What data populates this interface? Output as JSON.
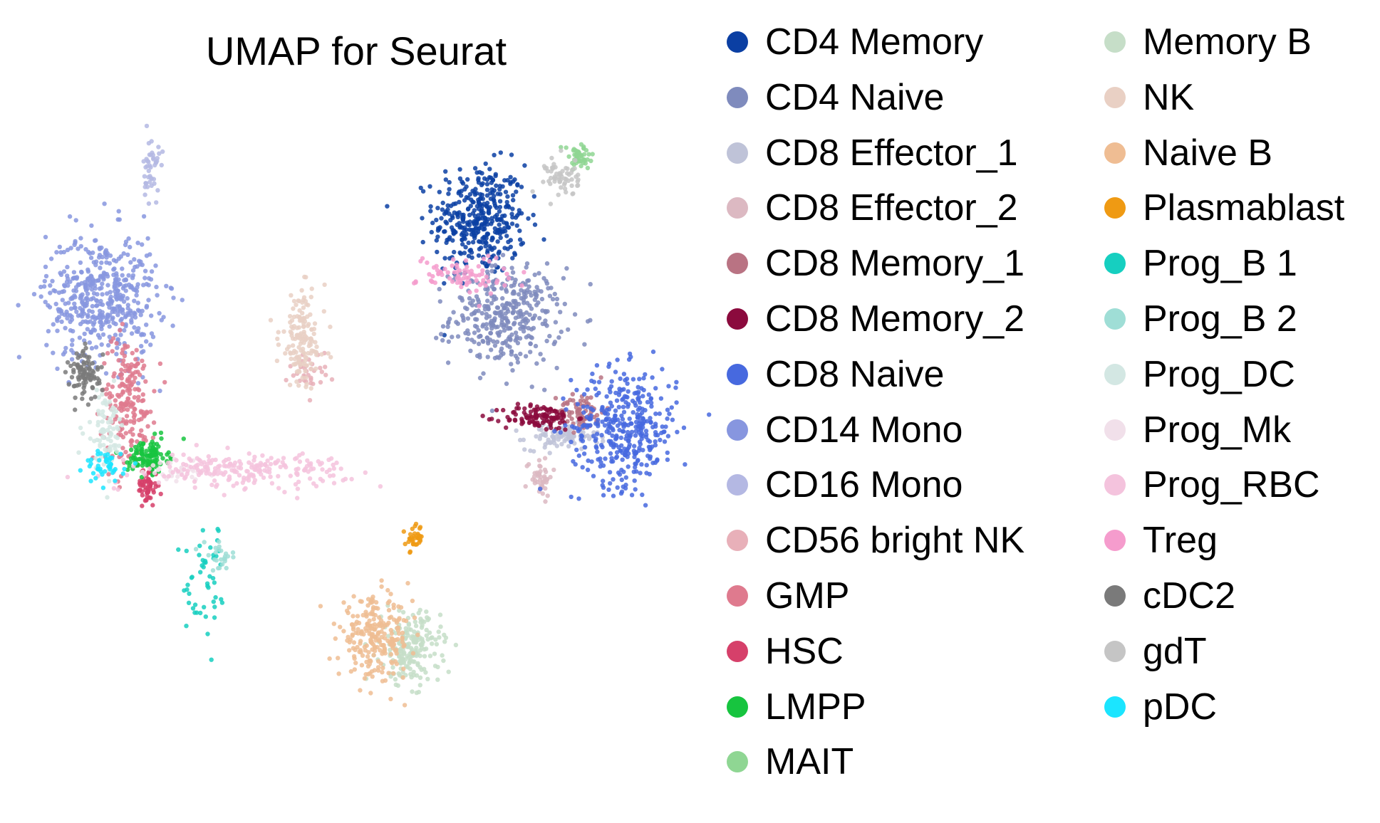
{
  "chart_data": {
    "type": "scatter",
    "title": "UMAP for Seurat",
    "xlabel": "",
    "ylabel": "",
    "axes_visible": false,
    "grid": false,
    "legend_placement": "right, two columns",
    "series": [
      {
        "name": "CD4 Memory",
        "color": "#0b3fa3",
        "clusters": [
          {
            "cx": 5.8,
            "cy": 8.6,
            "sx": 0.7,
            "sy": 0.85,
            "n": 380
          }
        ]
      },
      {
        "name": "CD4 Naive",
        "color": "#7f8bbd",
        "clusters": [
          {
            "cx": 6.6,
            "cy": 5.6,
            "sx": 0.85,
            "sy": 0.75,
            "n": 360
          }
        ]
      },
      {
        "name": "CD8 Effector_1",
        "color": "#bfc3d8",
        "clusters": [
          {
            "cx": 8.3,
            "cy": 1.9,
            "sx": 0.55,
            "sy": 0.2,
            "n": 90
          }
        ]
      },
      {
        "name": "CD8 Effector_2",
        "color": "#dcb9c2",
        "clusters": [
          {
            "cx": 7.6,
            "cy": 0.7,
            "sx": 0.2,
            "sy": 0.3,
            "n": 45
          }
        ]
      },
      {
        "name": "CD8 Memory_1",
        "color": "#b97383",
        "clusters": [
          {
            "cx": 8.9,
            "cy": 2.7,
            "sx": 0.35,
            "sy": 0.3,
            "n": 70
          }
        ]
      },
      {
        "name": "CD8 Memory_2",
        "color": "#8b0a3d",
        "clusters": [
          {
            "cx": 7.6,
            "cy": 2.5,
            "sx": 0.55,
            "sy": 0.2,
            "n": 110
          }
        ]
      },
      {
        "name": "CD8 Naive",
        "color": "#4769df",
        "clusters": [
          {
            "cx": 10.2,
            "cy": 2.2,
            "sx": 0.8,
            "sy": 0.9,
            "n": 380
          }
        ]
      },
      {
        "name": "CD14 Mono",
        "color": "#8796df",
        "clusters": [
          {
            "cx": -5.7,
            "cy": 6.2,
            "sx": 0.85,
            "sy": 1.0,
            "n": 480
          }
        ]
      },
      {
        "name": "CD16 Mono",
        "color": "#b4b8e3",
        "clusters": [
          {
            "cx": -4.2,
            "cy": 10.1,
            "sx": 0.12,
            "sy": 0.5,
            "n": 45
          }
        ]
      },
      {
        "name": "CD56 bright NK",
        "color": "#e8b0b9",
        "clusters": [
          {
            "cx": 0.6,
            "cy": 3.9,
            "sx": 0.3,
            "sy": 0.3,
            "n": 35
          }
        ]
      },
      {
        "name": "GMP",
        "color": "#df7a8e",
        "clusters": [
          {
            "cx": -4.9,
            "cy": 3.0,
            "sx": 0.4,
            "sy": 1.0,
            "n": 200
          }
        ]
      },
      {
        "name": "HSC",
        "color": "#d6406a",
        "clusters": [
          {
            "cx": -4.3,
            "cy": 0.4,
            "sx": 0.15,
            "sy": 0.3,
            "n": 55
          }
        ]
      },
      {
        "name": "LMPP",
        "color": "#17c43f",
        "clusters": [
          {
            "cx": -4.3,
            "cy": 1.3,
            "sx": 0.3,
            "sy": 0.25,
            "n": 110
          }
        ]
      },
      {
        "name": "MAIT",
        "color": "#8fd693",
        "clusters": [
          {
            "cx": 8.8,
            "cy": 10.5,
            "sx": 0.25,
            "sy": 0.2,
            "n": 50
          }
        ]
      },
      {
        "name": "Memory B",
        "color": "#c6dec8",
        "clusters": [
          {
            "cx": 3.7,
            "cy": -4.6,
            "sx": 0.45,
            "sy": 0.55,
            "n": 200
          }
        ]
      },
      {
        "name": "NK",
        "color": "#e9d0c4",
        "clusters": [
          {
            "cx": 0.4,
            "cy": 4.9,
            "sx": 0.35,
            "sy": 0.75,
            "n": 150
          }
        ]
      },
      {
        "name": "Naive B",
        "color": "#efbd93",
        "clusters": [
          {
            "cx": 2.6,
            "cy": -4.3,
            "sx": 0.55,
            "sy": 0.6,
            "n": 240
          }
        ]
      },
      {
        "name": "Plasmablast",
        "color": "#ef9a13",
        "clusters": [
          {
            "cx": 3.8,
            "cy": -1.2,
            "sx": 0.12,
            "sy": 0.2,
            "n": 35
          }
        ]
      },
      {
        "name": "Prog_B 1",
        "color": "#16cfc0",
        "clusters": [
          {
            "cx": -2.5,
            "cy": -2.6,
            "sx": 0.35,
            "sy": 0.9,
            "n": 50
          }
        ]
      },
      {
        "name": "Prog_B 2",
        "color": "#9fded6",
        "clusters": [
          {
            "cx": -2.1,
            "cy": -1.8,
            "sx": 0.25,
            "sy": 0.2,
            "n": 25
          }
        ]
      },
      {
        "name": "Prog_DC",
        "color": "#d3e7e3",
        "clusters": [
          {
            "cx": -5.6,
            "cy": 2.1,
            "sx": 0.3,
            "sy": 0.6,
            "n": 80
          }
        ]
      },
      {
        "name": "Prog_Mk",
        "color": "#f1e0ea",
        "clusters": [
          {
            "cx": -3.4,
            "cy": 0.8,
            "sx": 0.4,
            "sy": 0.15,
            "n": 30
          }
        ]
      },
      {
        "name": "Prog_RBC",
        "color": "#f4c3dd",
        "clusters": [
          {
            "cx": -1.4,
            "cy": 0.9,
            "sx": 1.6,
            "sy": 0.25,
            "n": 220
          }
        ]
      },
      {
        "name": "Treg",
        "color": "#f59ccd",
        "clusters": [
          {
            "cx": 5.3,
            "cy": 6.9,
            "sx": 0.7,
            "sy": 0.3,
            "n": 80
          }
        ]
      },
      {
        "name": "cDC2",
        "color": "#7a7a7a",
        "clusters": [
          {
            "cx": -6.2,
            "cy": 3.8,
            "sx": 0.25,
            "sy": 0.4,
            "n": 90
          }
        ]
      },
      {
        "name": "gdT",
        "color": "#c5c5c5",
        "clusters": [
          {
            "cx": 8.3,
            "cy": 9.9,
            "sx": 0.25,
            "sy": 0.3,
            "n": 60
          }
        ]
      },
      {
        "name": "pDC",
        "color": "#1be5ff",
        "clusters": [
          {
            "cx": -5.6,
            "cy": 1.0,
            "sx": 0.3,
            "sy": 0.25,
            "n": 45
          }
        ]
      }
    ],
    "xlim": [
      -7.5,
      12
    ],
    "ylim": [
      -7,
      12.5
    ]
  }
}
